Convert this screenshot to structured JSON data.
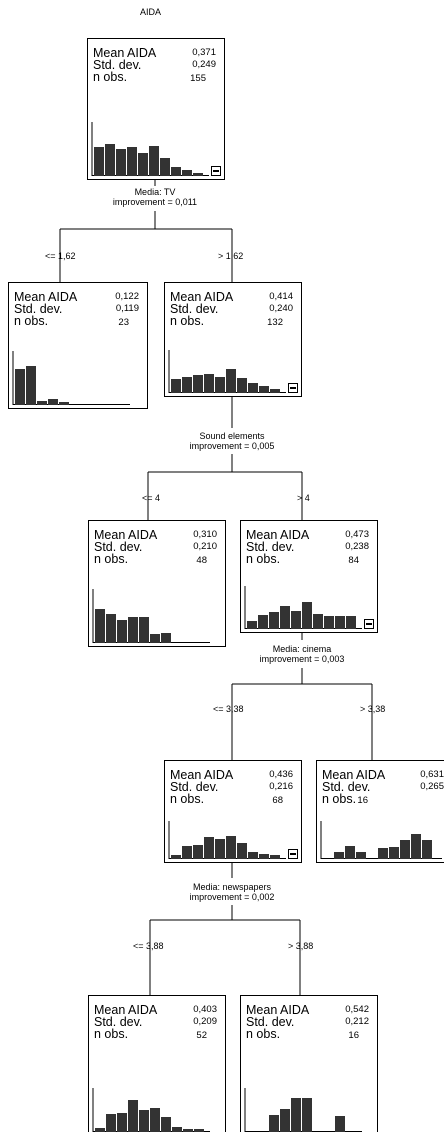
{
  "title": "AIDA",
  "stat_labels": {
    "mean": "Mean AIDA",
    "sd": "Std. dev.",
    "n": "n obs."
  },
  "nodes": [
    {
      "id": "root",
      "mean": "0,371",
      "sd": "0,249",
      "n": "155",
      "hist": [
        0.55,
        0.62,
        0.52,
        0.55,
        0.45,
        0.58,
        0.35,
        0.18,
        0.12,
        0.05
      ],
      "collapse": true
    },
    {
      "id": "tv-low",
      "mean": "0,122",
      "sd": "0,119",
      "n": "23",
      "hist": [
        0.7,
        0.75,
        0.08,
        0.12,
        0.05,
        0,
        0,
        0,
        0,
        0
      ],
      "collapse": false
    },
    {
      "id": "tv-high",
      "mean": "0,414",
      "sd": "0,240",
      "n": "132",
      "hist": [
        0.35,
        0.4,
        0.45,
        0.46,
        0.4,
        0.58,
        0.36,
        0.24,
        0.18,
        0.1
      ],
      "collapse": true
    },
    {
      "id": "sound-low",
      "mean": "0,310",
      "sd": "0,210",
      "n": "48",
      "hist": [
        0.65,
        0.55,
        0.45,
        0.5,
        0.5,
        0.18,
        0.2,
        0,
        0,
        0
      ],
      "collapse": false
    },
    {
      "id": "sound-high",
      "mean": "0,473",
      "sd": "0,238",
      "n": "84",
      "hist": [
        0.2,
        0.35,
        0.42,
        0.55,
        0.45,
        0.65,
        0.36,
        0.32,
        0.32,
        0.32
      ],
      "collapse": true
    },
    {
      "id": "cinema-low",
      "mean": "0,436",
      "sd": "0,216",
      "n": "68",
      "hist": [
        0.12,
        0.35,
        0.4,
        0.6,
        0.55,
        0.64,
        0.45,
        0.2,
        0.15,
        0.12
      ],
      "collapse": true
    },
    {
      "id": "cinema-high",
      "mean": "0,631",
      "sd": "0,265",
      "n": "16",
      "hist": [
        0,
        0.2,
        0.35,
        0.2,
        0,
        0.3,
        0.32,
        0.52,
        0.7,
        0.52
      ],
      "collapse": false
    },
    {
      "id": "news-low",
      "mean": "0,403",
      "sd": "0,209",
      "n": "52",
      "hist": [
        0.1,
        0.42,
        0.45,
        0.75,
        0.52,
        0.58,
        0.35,
        0.12,
        0.06,
        0.06
      ],
      "collapse": false
    },
    {
      "id": "news-high",
      "mean": "0,542",
      "sd": "0,212",
      "n": "16",
      "hist": [
        0,
        0,
        0.4,
        0.55,
        0.8,
        0.8,
        0,
        0,
        0.38,
        0
      ],
      "collapse": false
    }
  ],
  "splits": [
    {
      "id": "tv",
      "variable": "Media: TV",
      "improvement": "improvement = 0,011",
      "left": "<= 1,62",
      "right": "> 1,62"
    },
    {
      "id": "sound",
      "variable": "Sound elements",
      "improvement": "improvement = 0,005",
      "left": "<= 4",
      "right": "> 4"
    },
    {
      "id": "cinema",
      "variable": "Media: cinema",
      "improvement": "improvement = 0,003",
      "left": "<= 3,38",
      "right": "> 3,38"
    },
    {
      "id": "news",
      "variable": "Media: newspapers",
      "improvement": "improvement = 0,002",
      "left": "<= 3,88",
      "right": "> 3,88"
    }
  ]
}
